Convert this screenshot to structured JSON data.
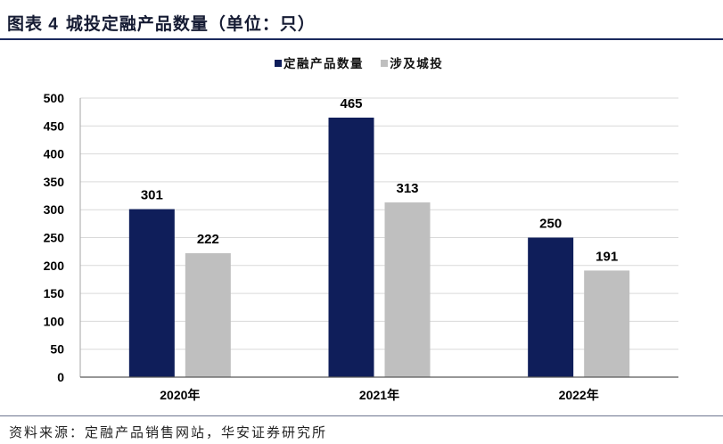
{
  "chart_data": {
    "type": "bar",
    "figure_label": "图表 4",
    "title": "城投定融产品数量（单位：只）",
    "categories": [
      "2020年",
      "2021年",
      "2022年"
    ],
    "series": [
      {
        "name": "定融产品数量",
        "values": [
          301,
          465,
          250
        ],
        "color": "#0f1e5a"
      },
      {
        "name": "涉及城投",
        "values": [
          222,
          313,
          191
        ],
        "color": "#bfbfbf"
      }
    ],
    "ylim": [
      0,
      500
    ],
    "yticks": [
      0,
      50,
      100,
      150,
      200,
      250,
      300,
      350,
      400,
      450,
      500
    ],
    "grid": true,
    "legend_position": "top-center",
    "data_labels": true
  },
  "footer": {
    "source": "资料来源：定融产品销售网站，华安证券研究所"
  }
}
